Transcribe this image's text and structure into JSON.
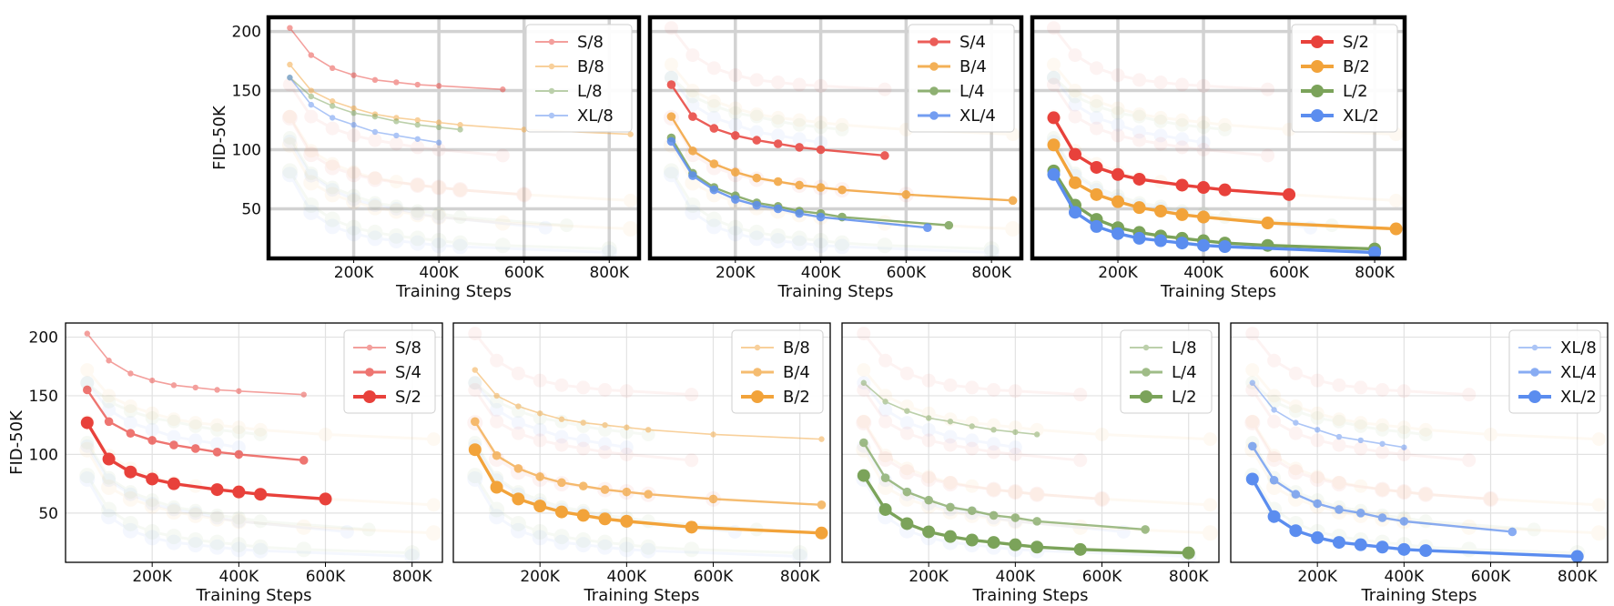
{
  "colors": {
    "S": "#e8413b",
    "B": "#f2a33a",
    "L": "#7ba35a",
    "XL": "#5b8def"
  },
  "chart_data": [
    {
      "panel": "top-1",
      "type": "line",
      "xlabel": "Training Steps",
      "ylabel": "FID-50K",
      "xlim": [
        0,
        870000
      ],
      "ylim": [
        8,
        212
      ],
      "xticks": [
        "200K",
        "400K",
        "600K",
        "800K"
      ],
      "yticks": [
        "50",
        "100",
        "150",
        "200"
      ],
      "legend": "top-right",
      "grid": true,
      "series": [
        {
          "name": "S/8",
          "x": [
            50000,
            100000,
            150000,
            200000,
            250000,
            300000,
            350000,
            400000,
            550000
          ],
          "y": [
            203,
            180,
            169,
            163,
            159,
            157,
            155,
            154,
            151
          ]
        },
        {
          "name": "B/8",
          "x": [
            50000,
            100000,
            150000,
            200000,
            250000,
            300000,
            350000,
            400000,
            450000,
            600000,
            850000
          ],
          "y": [
            172,
            150,
            141,
            135,
            130,
            127,
            125,
            123,
            121,
            117,
            113
          ]
        },
        {
          "name": "L/8",
          "x": [
            50000,
            100000,
            150000,
            200000,
            250000,
            300000,
            350000,
            400000,
            450000
          ],
          "y": [
            161,
            145,
            137,
            131,
            128,
            124,
            121,
            119,
            117
          ]
        },
        {
          "name": "XL/8",
          "x": [
            50000,
            100000,
            150000,
            200000,
            250000,
            300000,
            350000,
            400000
          ],
          "y": [
            161,
            138,
            127,
            121,
            115,
            112,
            109,
            106
          ]
        }
      ]
    },
    {
      "panel": "top-2",
      "type": "line",
      "xlabel": "Training Steps",
      "ylabel": "",
      "xlim": [
        0,
        870000
      ],
      "ylim": [
        8,
        212
      ],
      "xticks": [
        "200K",
        "400K",
        "600K",
        "800K"
      ],
      "yticks": [],
      "legend": "top-right",
      "grid": true,
      "series": [
        {
          "name": "S/4",
          "x": [
            50000,
            100000,
            150000,
            200000,
            250000,
            300000,
            350000,
            400000,
            550000
          ],
          "y": [
            155,
            128,
            118,
            112,
            108,
            105,
            102,
            100,
            95
          ]
        },
        {
          "name": "B/4",
          "x": [
            50000,
            100000,
            150000,
            200000,
            250000,
            300000,
            350000,
            400000,
            450000,
            600000,
            850000
          ],
          "y": [
            128,
            99,
            88,
            81,
            76,
            73,
            70,
            68,
            66,
            62,
            57
          ]
        },
        {
          "name": "L/4",
          "x": [
            50000,
            100000,
            150000,
            200000,
            250000,
            300000,
            350000,
            400000,
            450000,
            700000
          ],
          "y": [
            110,
            80,
            68,
            61,
            55,
            52,
            48,
            46,
            43,
            36
          ]
        },
        {
          "name": "XL/4",
          "x": [
            50000,
            100000,
            150000,
            200000,
            250000,
            300000,
            350000,
            400000,
            650000
          ],
          "y": [
            107,
            78,
            66,
            58,
            53,
            50,
            46,
            43,
            34
          ]
        }
      ]
    },
    {
      "panel": "top-3",
      "type": "line",
      "xlabel": "Training Steps",
      "ylabel": "",
      "xlim": [
        0,
        870000
      ],
      "ylim": [
        8,
        212
      ],
      "xticks": [
        "200K",
        "400K",
        "600K",
        "800K"
      ],
      "yticks": [],
      "legend": "top-right",
      "grid": true,
      "series": [
        {
          "name": "S/2",
          "x": [
            50000,
            100000,
            150000,
            200000,
            250000,
            350000,
            400000,
            450000,
            600000
          ],
          "y": [
            127,
            96,
            85,
            79,
            75,
            70,
            68,
            66,
            62
          ]
        },
        {
          "name": "B/2",
          "x": [
            50000,
            100000,
            150000,
            200000,
            250000,
            300000,
            350000,
            400000,
            550000,
            850000
          ],
          "y": [
            104,
            72,
            62,
            56,
            51,
            48,
            45,
            43,
            38,
            33
          ]
        },
        {
          "name": "L/2",
          "x": [
            50000,
            100000,
            150000,
            200000,
            250000,
            300000,
            350000,
            400000,
            450000,
            550000,
            800000
          ],
          "y": [
            82,
            53,
            41,
            34,
            30,
            27,
            25,
            23,
            21,
            19,
            16
          ]
        },
        {
          "name": "XL/2",
          "x": [
            50000,
            100000,
            150000,
            200000,
            250000,
            300000,
            350000,
            400000,
            450000,
            800000
          ],
          "y": [
            79,
            47,
            35,
            29,
            25,
            23,
            21,
            19,
            18,
            13
          ]
        }
      ]
    },
    {
      "panel": "bottom-1",
      "type": "line",
      "xlabel": "Training Steps",
      "ylabel": "FID-50K",
      "xlim": [
        0,
        870000
      ],
      "ylim": [
        8,
        212
      ],
      "xticks": [
        "200K",
        "400K",
        "600K",
        "800K"
      ],
      "yticks": [
        "50",
        "100",
        "150",
        "200"
      ],
      "legend": "top-right",
      "grid": true,
      "series": [
        {
          "name": "S/8",
          "x": [
            50000,
            100000,
            150000,
            200000,
            250000,
            300000,
            350000,
            400000,
            550000
          ],
          "y": [
            203,
            180,
            169,
            163,
            159,
            157,
            155,
            154,
            151
          ]
        },
        {
          "name": "S/4",
          "x": [
            50000,
            100000,
            150000,
            200000,
            250000,
            300000,
            350000,
            400000,
            550000
          ],
          "y": [
            155,
            128,
            118,
            112,
            108,
            105,
            102,
            100,
            95
          ]
        },
        {
          "name": "S/2",
          "x": [
            50000,
            100000,
            150000,
            200000,
            250000,
            350000,
            400000,
            450000,
            600000
          ],
          "y": [
            127,
            96,
            85,
            79,
            75,
            70,
            68,
            66,
            62
          ]
        }
      ]
    },
    {
      "panel": "bottom-2",
      "type": "line",
      "xlabel": "Training Steps",
      "ylabel": "",
      "xlim": [
        0,
        870000
      ],
      "ylim": [
        8,
        212
      ],
      "xticks": [
        "200K",
        "400K",
        "600K",
        "800K"
      ],
      "yticks": [],
      "legend": "top-right",
      "grid": true,
      "series": [
        {
          "name": "B/8",
          "x": [
            50000,
            100000,
            150000,
            200000,
            250000,
            300000,
            350000,
            400000,
            450000,
            600000,
            850000
          ],
          "y": [
            172,
            150,
            141,
            135,
            130,
            127,
            125,
            123,
            121,
            117,
            113
          ]
        },
        {
          "name": "B/4",
          "x": [
            50000,
            100000,
            150000,
            200000,
            250000,
            300000,
            350000,
            400000,
            450000,
            600000,
            850000
          ],
          "y": [
            128,
            99,
            88,
            81,
            76,
            73,
            70,
            68,
            66,
            62,
            57
          ]
        },
        {
          "name": "B/2",
          "x": [
            50000,
            100000,
            150000,
            200000,
            250000,
            300000,
            350000,
            400000,
            550000,
            850000
          ],
          "y": [
            104,
            72,
            62,
            56,
            51,
            48,
            45,
            43,
            38,
            33
          ]
        }
      ]
    },
    {
      "panel": "bottom-3",
      "type": "line",
      "xlabel": "Training Steps",
      "ylabel": "",
      "xlim": [
        0,
        870000
      ],
      "ylim": [
        8,
        212
      ],
      "xticks": [
        "200K",
        "400K",
        "600K",
        "800K"
      ],
      "yticks": [],
      "legend": "top-right",
      "grid": true,
      "series": [
        {
          "name": "L/8",
          "x": [
            50000,
            100000,
            150000,
            200000,
            250000,
            300000,
            350000,
            400000,
            450000
          ],
          "y": [
            161,
            145,
            137,
            131,
            128,
            124,
            121,
            119,
            117
          ]
        },
        {
          "name": "L/4",
          "x": [
            50000,
            100000,
            150000,
            200000,
            250000,
            300000,
            350000,
            400000,
            450000,
            700000
          ],
          "y": [
            110,
            80,
            68,
            61,
            55,
            52,
            48,
            46,
            43,
            36
          ]
        },
        {
          "name": "L/2",
          "x": [
            50000,
            100000,
            150000,
            200000,
            250000,
            300000,
            350000,
            400000,
            450000,
            550000,
            800000
          ],
          "y": [
            82,
            53,
            41,
            34,
            30,
            27,
            25,
            23,
            21,
            19,
            16
          ]
        }
      ]
    },
    {
      "panel": "bottom-4",
      "type": "line",
      "xlabel": "Training Steps",
      "ylabel": "",
      "xlim": [
        0,
        870000
      ],
      "ylim": [
        8,
        212
      ],
      "xticks": [
        "200K",
        "400K",
        "600K",
        "800K"
      ],
      "yticks": [],
      "legend": "top-right",
      "grid": true,
      "series": [
        {
          "name": "XL/8",
          "x": [
            50000,
            100000,
            150000,
            200000,
            250000,
            300000,
            350000,
            400000
          ],
          "y": [
            161,
            138,
            127,
            121,
            115,
            112,
            109,
            106
          ]
        },
        {
          "name": "XL/4",
          "x": [
            50000,
            100000,
            150000,
            200000,
            250000,
            300000,
            350000,
            400000,
            650000
          ],
          "y": [
            107,
            78,
            66,
            58,
            53,
            50,
            46,
            43,
            34
          ]
        },
        {
          "name": "XL/2",
          "x": [
            50000,
            100000,
            150000,
            200000,
            250000,
            300000,
            350000,
            400000,
            450000,
            800000
          ],
          "y": [
            79,
            47,
            35,
            29,
            25,
            23,
            21,
            19,
            18,
            13
          ]
        }
      ]
    }
  ]
}
